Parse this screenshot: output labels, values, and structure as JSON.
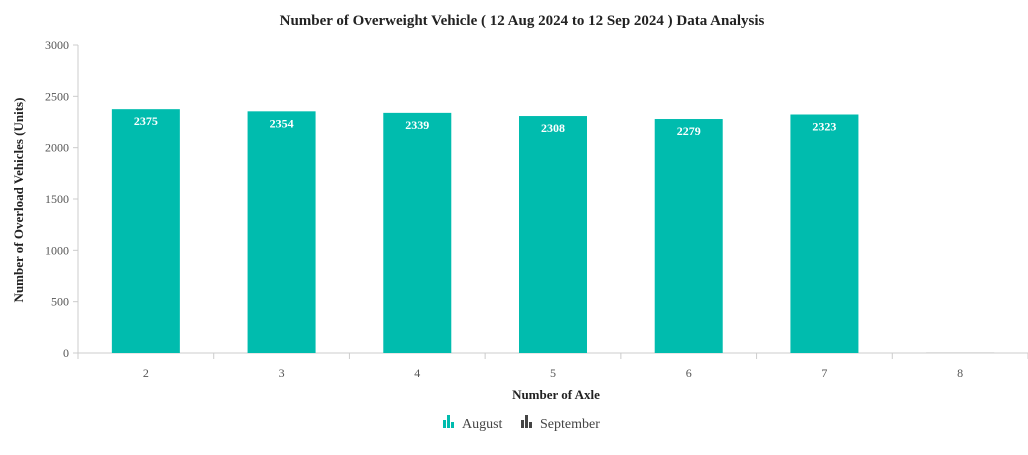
{
  "chart_data": {
    "type": "bar",
    "title": "Number of Overweight Vehicle ( 12 Aug 2024 to 12 Sep 2024 ) Data Analysis",
    "xlabel": "Number of Axle",
    "ylabel": "Number of Overload Vehicles (Units)",
    "categories": [
      "2",
      "3",
      "4",
      "5",
      "6",
      "7",
      "8"
    ],
    "ylim": [
      0,
      3000
    ],
    "yticks": [
      0,
      500,
      1000,
      1500,
      2000,
      2500,
      3000
    ],
    "series": [
      {
        "name": "August",
        "color": "#00bcae",
        "values": [
          2375,
          2354,
          2339,
          2308,
          2279,
          2323,
          0
        ],
        "labels": [
          "2375",
          "2354",
          "2339",
          "2308",
          "2279",
          "2323",
          ""
        ]
      },
      {
        "name": "September",
        "color": "#444444",
        "values": [
          0,
          0,
          0,
          0,
          0,
          0,
          0
        ],
        "labels": [
          "",
          "",
          "",
          "",
          "",
          "",
          ""
        ]
      }
    ],
    "grid": false,
    "legend_position": "bottom-center"
  }
}
